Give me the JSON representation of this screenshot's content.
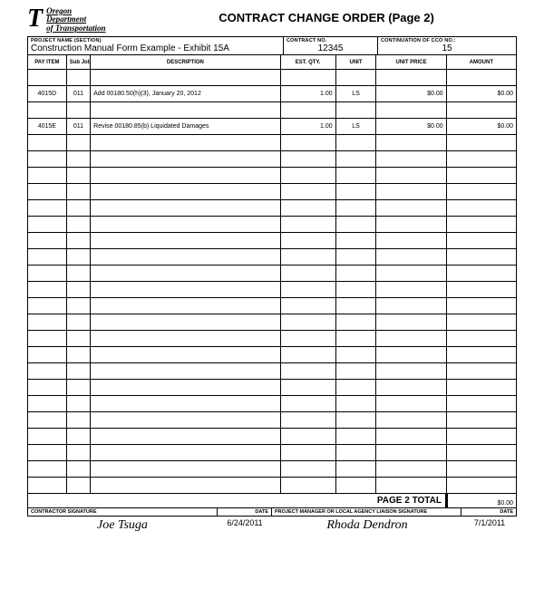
{
  "logo": {
    "line1": "Oregon",
    "line2": "Department",
    "line3": "of Transportation"
  },
  "title": "CONTRACT CHANGE ORDER (Page 2)",
  "meta": {
    "project_label": "PROJECT NAME (SECTION)",
    "project_value": "Construction Manual Form Example - Exhibit 15A",
    "contract_label": "CONTRACT NO.",
    "contract_value": "12345",
    "cco_label": "CONTINUATION OF CCO NO.:",
    "cco_value": "15"
  },
  "columns": {
    "pay_item": "PAY ITEM",
    "sub_job": "Sub Job",
    "description": "DESCRIPTION",
    "est_qty": "EST. QTY.",
    "unit": "UNIT",
    "unit_price": "UNIT PRICE",
    "amount": "AMOUNT"
  },
  "col_widths": {
    "pay_item": 42,
    "sub_job": 26,
    "description": 206,
    "est_qty": 60,
    "unit": 44,
    "unit_price": 76,
    "amount": 76
  },
  "rows": [
    {
      "pay": "",
      "sub": "",
      "desc": "",
      "qty": "",
      "unit": "",
      "price": "",
      "amount": ""
    },
    {
      "pay": "4015D",
      "sub": "011",
      "desc": "Add 00180.50(h)(3), January 20, 2012",
      "qty": "1.00",
      "unit": "LS",
      "price": "$0.00",
      "amount": "$0.00"
    },
    {
      "pay": "",
      "sub": "",
      "desc": "",
      "qty": "",
      "unit": "",
      "price": "",
      "amount": ""
    },
    {
      "pay": "4015E",
      "sub": "011",
      "desc": "Revise 00180.85(b) Liquidated Damages",
      "qty": "1.00",
      "unit": "LS",
      "price": "$0.00",
      "amount": "$0.00"
    },
    {
      "pay": "",
      "sub": "",
      "desc": "",
      "qty": "",
      "unit": "",
      "price": "",
      "amount": ""
    },
    {
      "pay": "",
      "sub": "",
      "desc": "",
      "qty": "",
      "unit": "",
      "price": "",
      "amount": ""
    },
    {
      "pay": "",
      "sub": "",
      "desc": "",
      "qty": "",
      "unit": "",
      "price": "",
      "amount": ""
    },
    {
      "pay": "",
      "sub": "",
      "desc": "",
      "qty": "",
      "unit": "",
      "price": "",
      "amount": ""
    },
    {
      "pay": "",
      "sub": "",
      "desc": "",
      "qty": "",
      "unit": "",
      "price": "",
      "amount": ""
    },
    {
      "pay": "",
      "sub": "",
      "desc": "",
      "qty": "",
      "unit": "",
      "price": "",
      "amount": ""
    },
    {
      "pay": "",
      "sub": "",
      "desc": "",
      "qty": "",
      "unit": "",
      "price": "",
      "amount": ""
    },
    {
      "pay": "",
      "sub": "",
      "desc": "",
      "qty": "",
      "unit": "",
      "price": "",
      "amount": ""
    },
    {
      "pay": "",
      "sub": "",
      "desc": "",
      "qty": "",
      "unit": "",
      "price": "",
      "amount": ""
    },
    {
      "pay": "",
      "sub": "",
      "desc": "",
      "qty": "",
      "unit": "",
      "price": "",
      "amount": ""
    },
    {
      "pay": "",
      "sub": "",
      "desc": "",
      "qty": "",
      "unit": "",
      "price": "",
      "amount": ""
    },
    {
      "pay": "",
      "sub": "",
      "desc": "",
      "qty": "",
      "unit": "",
      "price": "",
      "amount": ""
    },
    {
      "pay": "",
      "sub": "",
      "desc": "",
      "qty": "",
      "unit": "",
      "price": "",
      "amount": ""
    },
    {
      "pay": "",
      "sub": "",
      "desc": "",
      "qty": "",
      "unit": "",
      "price": "",
      "amount": ""
    },
    {
      "pay": "",
      "sub": "",
      "desc": "",
      "qty": "",
      "unit": "",
      "price": "",
      "amount": ""
    },
    {
      "pay": "",
      "sub": "",
      "desc": "",
      "qty": "",
      "unit": "",
      "price": "",
      "amount": ""
    },
    {
      "pay": "",
      "sub": "",
      "desc": "",
      "qty": "",
      "unit": "",
      "price": "",
      "amount": ""
    },
    {
      "pay": "",
      "sub": "",
      "desc": "",
      "qty": "",
      "unit": "",
      "price": "",
      "amount": ""
    },
    {
      "pay": "",
      "sub": "",
      "desc": "",
      "qty": "",
      "unit": "",
      "price": "",
      "amount": ""
    },
    {
      "pay": "",
      "sub": "",
      "desc": "",
      "qty": "",
      "unit": "",
      "price": "",
      "amount": ""
    },
    {
      "pay": "",
      "sub": "",
      "desc": "",
      "qty": "",
      "unit": "",
      "price": "",
      "amount": ""
    },
    {
      "pay": "",
      "sub": "",
      "desc": "",
      "qty": "",
      "unit": "",
      "price": "",
      "amount": ""
    }
  ],
  "total": {
    "label": "PAGE 2 TOTAL",
    "amount": "$0.00"
  },
  "signatures": {
    "contractor_label": "CONTRACTOR SIGNATURE",
    "date_label": "DATE",
    "pm_label": "PROJECT MANAGER OR LOCAL AGENCY LIAISON SIGNATURE",
    "contractor_sig": "Joe Tsuga",
    "contractor_date": "6/24/2011",
    "pm_sig": "Rhoda Dendron",
    "pm_date": "7/1/2011"
  }
}
